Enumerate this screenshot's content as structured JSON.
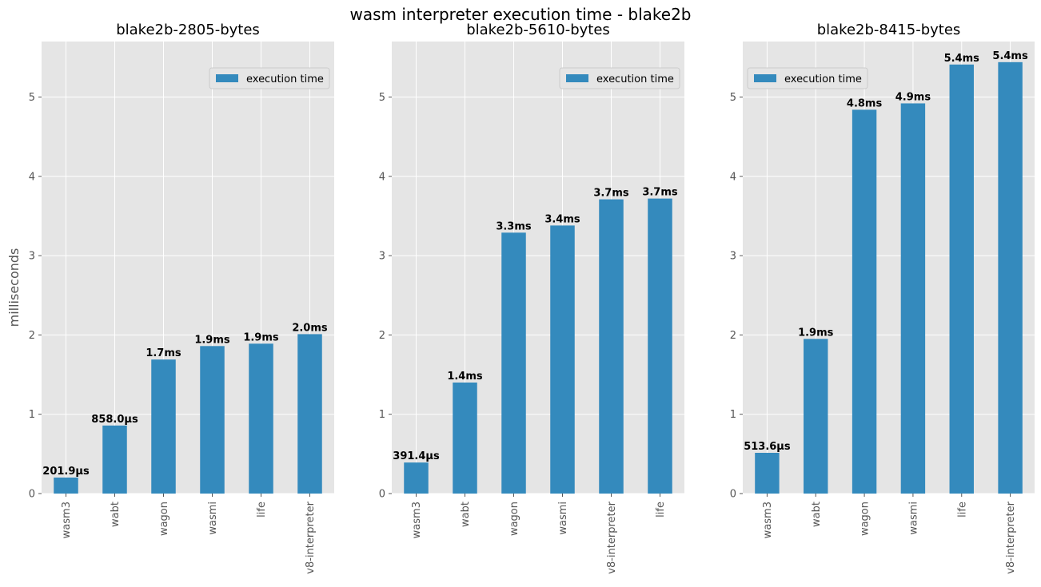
{
  "figure": {
    "suptitle": "wasm interpreter execution time - blake2b"
  },
  "colors": {
    "bar": "#348ABD",
    "axes_bg": "#E5E5E5",
    "grid": "#FFFFFF",
    "tick_text": "#555555",
    "label_text": "#000000"
  },
  "chart_data": [
    {
      "type": "bar",
      "title": "blake2b-2805-bytes",
      "ylabel": "milliseconds",
      "xlabel": "",
      "ylim": [
        0,
        5.7
      ],
      "yticks": [
        0,
        1,
        2,
        3,
        4,
        5
      ],
      "grid": true,
      "legend": {
        "position": "top-right",
        "entries": [
          "execution time"
        ]
      },
      "categories": [
        "wasm3",
        "wabt",
        "wagon",
        "wasmi",
        "life",
        "v8-interpreter"
      ],
      "series": [
        {
          "name": "execution time",
          "values": [
            0.2019,
            0.858,
            1.69,
            1.86,
            1.89,
            2.01
          ]
        }
      ],
      "data_labels": [
        "201.9µs",
        "858.0µs",
        "1.7ms",
        "1.9ms",
        "1.9ms",
        "2.0ms"
      ]
    },
    {
      "type": "bar",
      "title": "blake2b-5610-bytes",
      "ylabel": "",
      "xlabel": "",
      "ylim": [
        0,
        5.7
      ],
      "yticks": [
        0,
        1,
        2,
        3,
        4,
        5
      ],
      "grid": true,
      "legend": {
        "position": "top-right",
        "entries": [
          "execution time"
        ]
      },
      "categories": [
        "wasm3",
        "wabt",
        "wagon",
        "wasmi",
        "v8-interpreter",
        "life"
      ],
      "series": [
        {
          "name": "execution time",
          "values": [
            0.3914,
            1.4,
            3.29,
            3.38,
            3.71,
            3.72
          ]
        }
      ],
      "data_labels": [
        "391.4µs",
        "1.4ms",
        "3.3ms",
        "3.4ms",
        "3.7ms",
        "3.7ms"
      ]
    },
    {
      "type": "bar",
      "title": "blake2b-8415-bytes",
      "ylabel": "",
      "xlabel": "",
      "ylim": [
        0,
        5.7
      ],
      "yticks": [
        0,
        1,
        2,
        3,
        4,
        5
      ],
      "grid": true,
      "legend": {
        "position": "top-left",
        "entries": [
          "execution time"
        ]
      },
      "categories": [
        "wasm3",
        "wabt",
        "wagon",
        "wasmi",
        "life",
        "v8-interpreter"
      ],
      "series": [
        {
          "name": "execution time",
          "values": [
            0.5136,
            1.95,
            4.84,
            4.92,
            5.41,
            5.44
          ]
        }
      ],
      "data_labels": [
        "513.6µs",
        "1.9ms",
        "4.8ms",
        "4.9ms",
        "5.4ms",
        "5.4ms"
      ]
    }
  ]
}
